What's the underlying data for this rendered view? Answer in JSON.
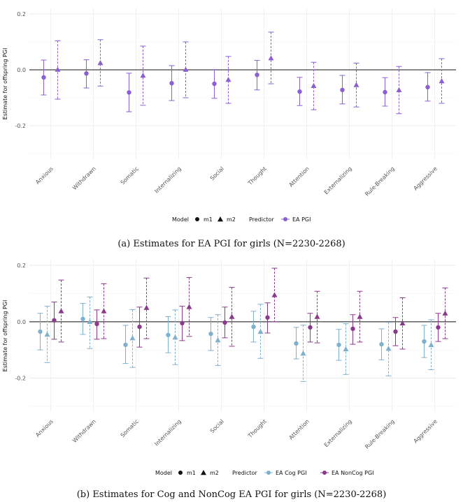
{
  "chart_data": [
    {
      "type": "scatter",
      "subtype": "point-errorbar",
      "caption": "(a) Estimates for EA PGI for girls (N=2230-2268)",
      "ylabel": "Estimate for offspring PGI",
      "ylim": [
        -0.32,
        0.22
      ],
      "yticks": [
        -0.2,
        0.0,
        0.2
      ],
      "ytick_labels": [
        "-0.2",
        "0.0",
        "0.2"
      ],
      "reference_line": 0,
      "categories": [
        "Anxious",
        "Withdrawn",
        "Somatic",
        "Internalizing",
        "Social",
        "Thought",
        "Attention",
        "Externalizing",
        "Rule-Breaking",
        "Aggressive"
      ],
      "legend": {
        "model_title": "Model",
        "m1_label": "m1",
        "m2_label": "m2",
        "predictor_title": "Predictor",
        "predictors": [
          "EA PGI"
        ]
      },
      "series": [
        {
          "predictor": "EA PGI",
          "model": "m1",
          "color": "#8b5fd0",
          "values": [
            -0.027,
            -0.013,
            -0.081,
            -0.048,
            -0.05,
            -0.018,
            -0.078,
            -0.072,
            -0.08,
            -0.062
          ],
          "lower": [
            -0.09,
            -0.065,
            -0.15,
            -0.11,
            -0.102,
            -0.072,
            -0.128,
            -0.122,
            -0.13,
            -0.112
          ],
          "upper": [
            0.035,
            0.036,
            -0.012,
            0.015,
            0.001,
            0.034,
            -0.027,
            -0.02,
            -0.028,
            -0.01
          ]
        },
        {
          "predictor": "EA PGI",
          "model": "m2",
          "color": "#8b5fd0",
          "values": [
            0.001,
            0.025,
            -0.02,
            0.001,
            -0.035,
            0.042,
            -0.057,
            -0.054,
            -0.072,
            -0.04
          ],
          "lower": [
            -0.105,
            -0.058,
            -0.127,
            -0.1,
            -0.12,
            -0.05,
            -0.143,
            -0.133,
            -0.157,
            -0.12
          ],
          "upper": [
            0.104,
            0.108,
            0.085,
            0.1,
            0.048,
            0.135,
            0.027,
            0.024,
            0.012,
            0.04
          ]
        }
      ]
    },
    {
      "type": "scatter",
      "subtype": "point-errorbar",
      "caption": "(b) Estimates for Cog and NonCog EA PGI for girls (N=2230-2268)",
      "ylabel": "Estimate for offspring PGI",
      "ylim": [
        -0.32,
        0.22
      ],
      "yticks": [
        -0.2,
        0.0,
        0.2
      ],
      "ytick_labels": [
        "-0.2",
        "0.0",
        "0.2"
      ],
      "reference_line": 0,
      "categories": [
        "Anxious",
        "Withdrawn",
        "Somatic",
        "Internalizing",
        "Social",
        "Thought",
        "Attention",
        "Externalizing",
        "Rule-Breaking",
        "Aggressive"
      ],
      "legend": {
        "model_title": "Model",
        "m1_label": "m1",
        "m2_label": "m2",
        "predictor_title": "Predictor",
        "predictors": [
          "EA Cog PGI",
          "EA NonCog PGI"
        ]
      },
      "series": [
        {
          "predictor": "EA Cog PGI",
          "model": "m1",
          "color": "#7fb0cc",
          "values": [
            -0.035,
            0.01,
            -0.082,
            -0.047,
            -0.043,
            -0.018,
            -0.077,
            -0.082,
            -0.08,
            -0.07
          ],
          "lower": [
            -0.1,
            -0.045,
            -0.148,
            -0.11,
            -0.102,
            -0.072,
            -0.132,
            -0.137,
            -0.135,
            -0.127
          ],
          "upper": [
            0.03,
            0.065,
            -0.013,
            0.018,
            0.015,
            0.037,
            -0.02,
            -0.027,
            -0.025,
            -0.013
          ]
        },
        {
          "predictor": "EA Cog PGI",
          "model": "m2",
          "color": "#7fb0cc",
          "values": [
            -0.045,
            0.0,
            -0.058,
            -0.055,
            -0.065,
            -0.035,
            -0.112,
            -0.097,
            -0.095,
            -0.082
          ],
          "lower": [
            -0.145,
            -0.095,
            -0.162,
            -0.152,
            -0.155,
            -0.13,
            -0.212,
            -0.187,
            -0.192,
            -0.17
          ],
          "upper": [
            0.055,
            0.088,
            0.043,
            0.042,
            0.025,
            0.062,
            -0.012,
            -0.007,
            -0.002,
            0.007
          ]
        },
        {
          "predictor": "EA NonCog PGI",
          "model": "m1",
          "color": "#8b3a8b",
          "values": [
            0.005,
            -0.008,
            -0.018,
            -0.005,
            -0.003,
            0.015,
            -0.02,
            -0.025,
            -0.035,
            -0.02
          ],
          "lower": [
            -0.062,
            -0.062,
            -0.09,
            -0.067,
            -0.057,
            -0.04,
            -0.072,
            -0.08,
            -0.085,
            -0.07
          ],
          "upper": [
            0.07,
            0.042,
            0.052,
            0.055,
            0.052,
            0.067,
            0.03,
            0.025,
            0.015,
            0.03
          ]
        },
        {
          "predictor": "EA NonCog PGI",
          "model": "m2",
          "color": "#8b3a8b",
          "values": [
            0.038,
            0.038,
            0.05,
            0.053,
            0.018,
            0.095,
            0.018,
            0.018,
            -0.005,
            0.03
          ],
          "lower": [
            -0.072,
            -0.06,
            -0.06,
            -0.052,
            -0.087,
            0.0,
            -0.075,
            -0.072,
            -0.097,
            -0.06
          ],
          "upper": [
            0.148,
            0.135,
            0.155,
            0.157,
            0.122,
            0.19,
            0.108,
            0.108,
            0.085,
            0.12
          ]
        }
      ]
    }
  ]
}
